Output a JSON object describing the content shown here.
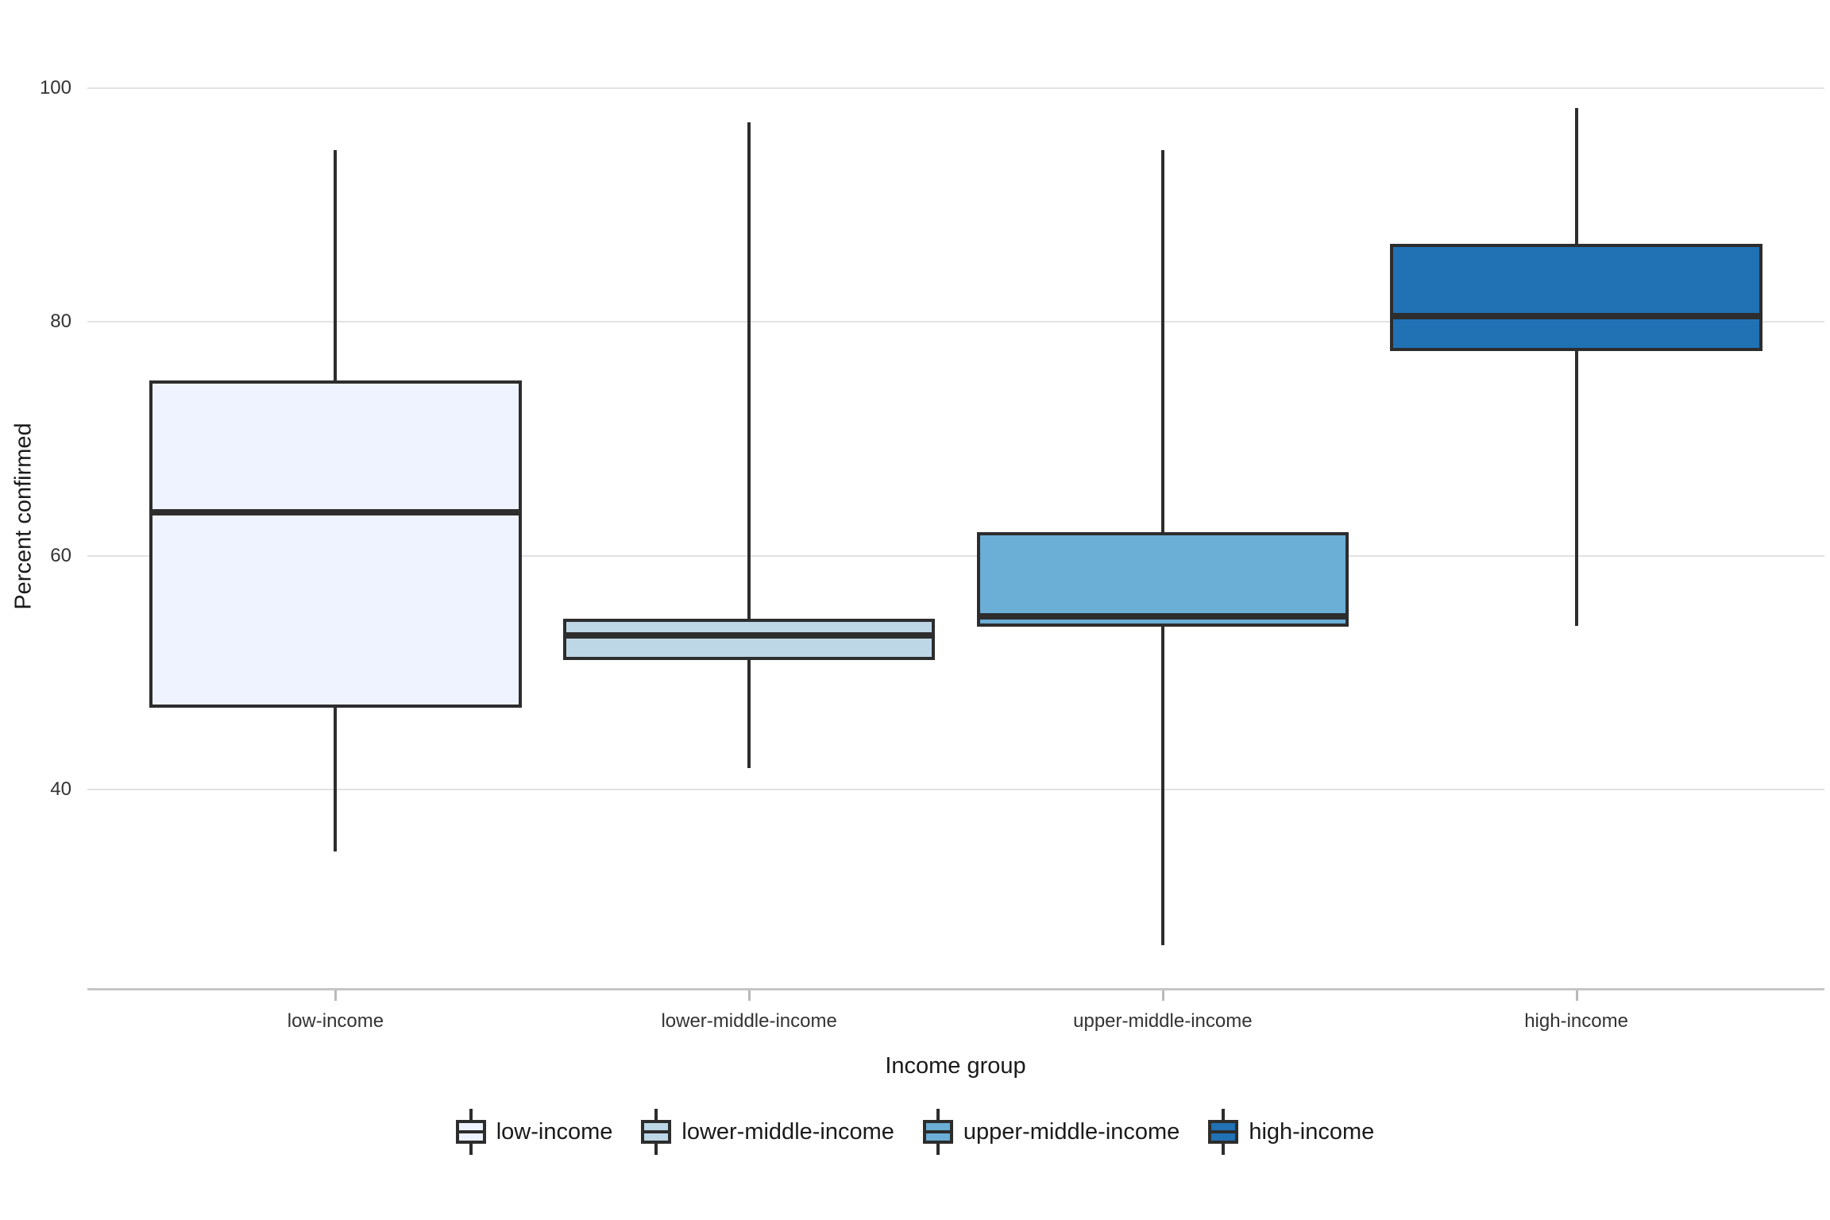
{
  "chart_data": {
    "type": "boxplot",
    "title": "",
    "xlabel": "Income group",
    "ylabel": "Percent confirmed",
    "ylim": [
      23,
      105.5
    ],
    "y_ticks": [
      100,
      80,
      60,
      40
    ],
    "grid": "horizontal-only",
    "legend_position": "bottom",
    "categories": [
      "low-income",
      "lower-middle-income",
      "upper-middle-income",
      "high-income"
    ],
    "groups": [
      {
        "label": "low-income",
        "fill": "#EFF3FF",
        "whisker_low": 34.7,
        "q1": 47.0,
        "median": 63.7,
        "q3": 75.0,
        "whisker_high": 94.7
      },
      {
        "label": "lower-middle-income",
        "fill": "#BDD7E7",
        "whisker_low": 41.8,
        "q1": 51.1,
        "median": 53.2,
        "q3": 54.6,
        "whisker_high": 97.1
      },
      {
        "label": "upper-middle-income",
        "fill": "#6BAED6",
        "whisker_low": 26.7,
        "q1": 53.9,
        "median": 54.8,
        "q3": 62.0,
        "whisker_high": 94.7
      },
      {
        "label": "high-income",
        "fill": "#2171B5",
        "whisker_low": 54.0,
        "q1": 77.5,
        "median": 80.5,
        "q3": 86.7,
        "whisker_high": 98.3
      }
    ],
    "colors": {
      "box_stroke": "#2d2d2d",
      "gridline": "#e2e2e2",
      "axis_line": "#c6c6c6",
      "tick_text": "#333333",
      "title_text": "#1a1a1a",
      "background": "#ffffff"
    }
  }
}
